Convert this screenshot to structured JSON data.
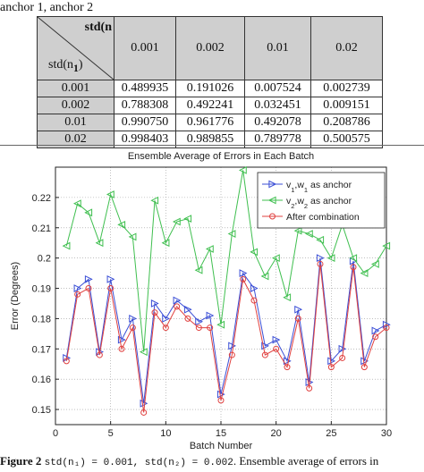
{
  "top_caption": "anchor 1, anchor 2",
  "table": {
    "header_top": "std(n",
    "header_bottom": "std(n",
    "header_bottom_sub": "1",
    "header_bottom_close": ")",
    "columns": [
      "0.001",
      "0.002",
      "0.01",
      "0.02"
    ],
    "rows": [
      {
        "label": "0.001",
        "values": [
          "0.489935",
          "0.191026",
          "0.007524",
          "0.002739"
        ]
      },
      {
        "label": "0.002",
        "values": [
          "0.788308",
          "0.492241",
          "0.032451",
          "0.009151"
        ]
      },
      {
        "label": "0.01",
        "values": [
          "0.990750",
          "0.961776",
          "0.492078",
          "0.208786"
        ]
      },
      {
        "label": "0.02",
        "values": [
          "0.998403",
          "0.989855",
          "0.789778",
          "0.500575"
        ]
      }
    ]
  },
  "chart_data": {
    "type": "line",
    "title": "Ensemble Average of Errors in Each Batch",
    "xlabel": "Batch Number",
    "ylabel": "Error (Degrees)",
    "xlim": [
      0,
      30
    ],
    "ylim": [
      0.145,
      0.23
    ],
    "xticks": [
      0,
      5,
      10,
      15,
      20,
      25,
      30
    ],
    "yticks": [
      0.15,
      0.16,
      0.17,
      0.18,
      0.19,
      0.2,
      0.21,
      0.22
    ],
    "grid": true,
    "legend_position": "top-right",
    "x": [
      1,
      2,
      3,
      4,
      5,
      6,
      7,
      8,
      9,
      10,
      11,
      12,
      13,
      14,
      15,
      16,
      17,
      18,
      19,
      20,
      21,
      22,
      23,
      24,
      25,
      26,
      27,
      28,
      29,
      30
    ],
    "series": [
      {
        "name": "v1,w1 as anchor",
        "name_parts": [
          "v",
          "1",
          ",w",
          "1",
          " as anchor"
        ],
        "color": "#3b4fd6",
        "marker": "triangle-right",
        "values": [
          0.167,
          0.19,
          0.193,
          0.169,
          0.193,
          0.173,
          0.18,
          0.152,
          0.185,
          0.18,
          0.186,
          0.183,
          0.179,
          0.181,
          0.155,
          0.171,
          0.195,
          0.19,
          0.171,
          0.173,
          0.166,
          0.183,
          0.159,
          0.2,
          0.166,
          0.17,
          0.199,
          0.166,
          0.176,
          0.178
        ]
      },
      {
        "name": "v2,w2 as anchor",
        "name_parts": [
          "v",
          "2",
          ",w",
          "2",
          " as anchor"
        ],
        "color": "#3fbf4f",
        "marker": "triangle-left",
        "values": [
          0.204,
          0.218,
          0.215,
          0.205,
          0.221,
          0.211,
          0.207,
          0.169,
          0.219,
          0.205,
          0.212,
          0.213,
          0.196,
          0.203,
          0.178,
          0.208,
          0.229,
          0.202,
          0.194,
          0.2,
          0.187,
          0.209,
          0.208,
          0.206,
          0.2,
          0.211,
          0.2,
          0.195,
          0.198,
          0.204
        ]
      },
      {
        "name": "After combination",
        "name_parts": [
          "After combination"
        ],
        "color": "#e0403f",
        "marker": "circle",
        "values": [
          0.166,
          0.188,
          0.19,
          0.168,
          0.19,
          0.17,
          0.177,
          0.149,
          0.182,
          0.177,
          0.184,
          0.18,
          0.177,
          0.177,
          0.153,
          0.168,
          0.193,
          0.186,
          0.168,
          0.17,
          0.164,
          0.18,
          0.157,
          0.198,
          0.164,
          0.167,
          0.197,
          0.164,
          0.174,
          0.177
        ]
      }
    ]
  },
  "figure_caption": {
    "label": "Figure 2",
    "text_a": "std(n₁) = 0.001, std(n₂) = 0.002",
    "text_b": ". Ensemble average of errors in"
  }
}
